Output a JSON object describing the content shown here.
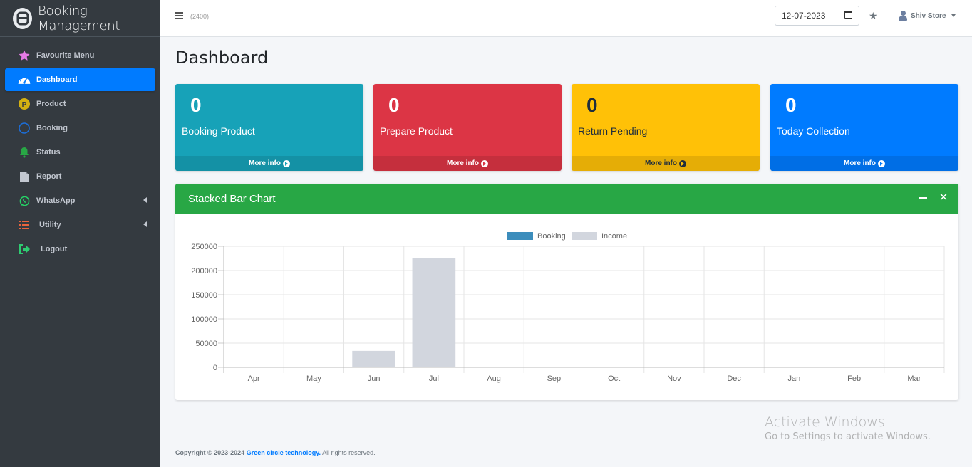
{
  "brand": {
    "name": "Booking Management"
  },
  "sidebar": {
    "items": [
      {
        "label": "Favourite Menu",
        "icon": "star-icon",
        "color": "#e57be5"
      },
      {
        "label": "Dashboard",
        "icon": "tachometer-icon",
        "active": true
      },
      {
        "label": "Product",
        "icon": "product-p-icon",
        "color": "#d4b012"
      },
      {
        "label": "Booking",
        "icon": "circle-icon",
        "color": "#1c6ed9"
      },
      {
        "label": "Status",
        "icon": "bell-icon",
        "color": "#28a745"
      },
      {
        "label": "Report",
        "icon": "file-icon",
        "color": "#c2c7d0"
      },
      {
        "label": "WhatsApp",
        "icon": "whatsapp-icon",
        "color": "#25d366"
      },
      {
        "label": "Utility",
        "icon": "list-icon",
        "color": "#e8643d"
      },
      {
        "label": "Logout",
        "icon": "sign-out-icon",
        "color": "#2ecc71"
      }
    ]
  },
  "header": {
    "count": "(2400)",
    "date": "12-07-2023",
    "user": "Shiv Store"
  },
  "page": {
    "title": "Dashboard"
  },
  "boxes": [
    {
      "value": "0",
      "label": "Booking Product",
      "more": "More info"
    },
    {
      "value": "0",
      "label": "Prepare Product",
      "more": "More info"
    },
    {
      "value": "0",
      "label": "Return Pending",
      "more": "More info"
    },
    {
      "value": "0",
      "label": "Today Collection",
      "more": "More info"
    }
  ],
  "chart_card": {
    "title": "Stacked Bar Chart"
  },
  "chart_data": {
    "type": "bar",
    "stacked": true,
    "categories": [
      "Apr",
      "May",
      "Jun",
      "Jul",
      "Aug",
      "Sep",
      "Oct",
      "Nov",
      "Dec",
      "Jan",
      "Feb",
      "Mar"
    ],
    "series": [
      {
        "name": "Booking",
        "color": "#3c8dbc",
        "values": [
          0,
          0,
          0,
          0,
          0,
          0,
          0,
          0,
          0,
          0,
          0,
          0
        ]
      },
      {
        "name": "Income",
        "color": "#d2d6de",
        "values": [
          0,
          0,
          34000,
          225000,
          0,
          0,
          0,
          0,
          0,
          0,
          0,
          0
        ]
      }
    ],
    "ylim": [
      0,
      250000
    ],
    "yticks": [
      0,
      50000,
      100000,
      150000,
      200000,
      250000
    ],
    "legend": "top",
    "grid": true
  },
  "footer": {
    "copyright": "Copyright © 2023-2024",
    "company": "Green circle technology.",
    "rights": "All rights reserved."
  },
  "watermark": {
    "line1": "Activate Windows",
    "line2": "Go to Settings to activate Windows."
  }
}
